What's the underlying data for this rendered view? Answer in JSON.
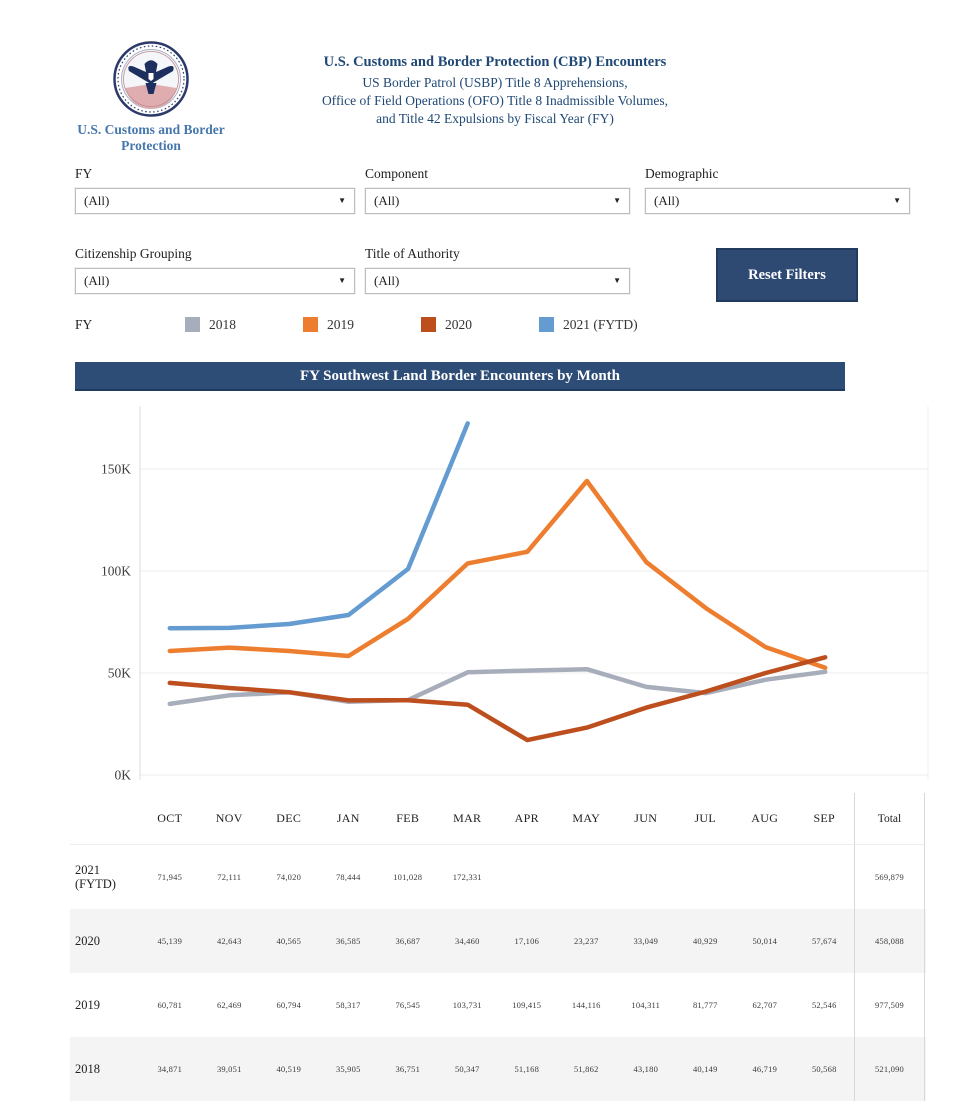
{
  "header": {
    "logo_caption": "U.S. Customs and Border Protection",
    "title": "U.S. Customs and Border Protection (CBP) Encounters",
    "subtitle_lines": [
      "US Border Patrol (USBP) Title 8 Apprehensions,",
      "Office of Field Operations (OFO) Title 8 Inadmissible Volumes,",
      "and Title 42 Expulsions by Fiscal Year (FY)"
    ]
  },
  "filters": [
    {
      "label": "FY",
      "value": "(All)"
    },
    {
      "label": "Component",
      "value": "(All)"
    },
    {
      "label": "Demographic",
      "value": "(All)"
    },
    {
      "label": "Citizenship Grouping",
      "value": "(All)"
    },
    {
      "label": "Title of Authority",
      "value": "(All)"
    }
  ],
  "reset_button_label": "Reset Filters",
  "legend": {
    "label": "FY",
    "items": [
      {
        "label": "2018",
        "color": "#a7adba"
      },
      {
        "label": "2019",
        "color": "#ee7e2f"
      },
      {
        "label": "2020",
        "color": "#bd4e1e"
      },
      {
        "label": "2021 (FYTD)",
        "color": "#649bd0"
      }
    ]
  },
  "banner_title": "FY Southwest Land Border Encounters by Month",
  "chart_data": {
    "type": "line",
    "title": "FY Southwest Land Border Encounters by Month",
    "categories": [
      "OCT",
      "NOV",
      "DEC",
      "JAN",
      "FEB",
      "MAR",
      "APR",
      "MAY",
      "JUN",
      "JUL",
      "AUG",
      "SEP"
    ],
    "series": [
      {
        "name": "2018",
        "color": "#a7adba",
        "values": [
          34871,
          39051,
          40519,
          35905,
          36751,
          50347,
          51168,
          51862,
          43180,
          40149,
          46719,
          50568
        ]
      },
      {
        "name": "2019",
        "color": "#ee7e2f",
        "values": [
          60781,
          62469,
          60794,
          58317,
          76545,
          103731,
          109415,
          144116,
          104311,
          81777,
          62707,
          52546
        ]
      },
      {
        "name": "2020",
        "color": "#bd4e1e",
        "values": [
          45139,
          42643,
          40565,
          36585,
          36687,
          34460,
          17106,
          23237,
          33049,
          40929,
          50014,
          57674
        ]
      },
      {
        "name": "2021 (FYTD)",
        "color": "#649bd0",
        "values": [
          71945,
          72111,
          74020,
          78444,
          101028,
          172331
        ]
      }
    ],
    "yticks": [
      {
        "label": "0K",
        "value": 0
      },
      {
        "label": "50K",
        "value": 50000
      },
      {
        "label": "100K",
        "value": 100000
      },
      {
        "label": "150K",
        "value": 150000
      }
    ],
    "ylim": [
      0,
      185000
    ],
    "grid": true,
    "legend_position": "top"
  },
  "table": {
    "columns": [
      "OCT",
      "NOV",
      "DEC",
      "JAN",
      "FEB",
      "MAR",
      "APR",
      "MAY",
      "JUN",
      "JUL",
      "AUG",
      "SEP",
      "Total"
    ],
    "rows": [
      {
        "year": "2021 (FYTD)",
        "values": [
          "71,945",
          "72,111",
          "74,020",
          "78,444",
          "101,028",
          "172,331",
          "",
          "",
          "",
          "",
          "",
          ""
        ],
        "total": "569,879"
      },
      {
        "year": "2020",
        "values": [
          "45,139",
          "42,643",
          "40,565",
          "36,585",
          "36,687",
          "34,460",
          "17,106",
          "23,237",
          "33,049",
          "40,929",
          "50,014",
          "57,674"
        ],
        "total": "458,088"
      },
      {
        "year": "2019",
        "values": [
          "60,781",
          "62,469",
          "60,794",
          "58,317",
          "76,545",
          "103,731",
          "109,415",
          "144,116",
          "104,311",
          "81,777",
          "62,707",
          "52,546"
        ],
        "total": "977,509"
      },
      {
        "year": "2018",
        "values": [
          "34,871",
          "39,051",
          "40,519",
          "35,905",
          "36,751",
          "50,347",
          "51,168",
          "51,862",
          "43,180",
          "40,149",
          "46,719",
          "50,568"
        ],
        "total": "521,090"
      }
    ]
  }
}
